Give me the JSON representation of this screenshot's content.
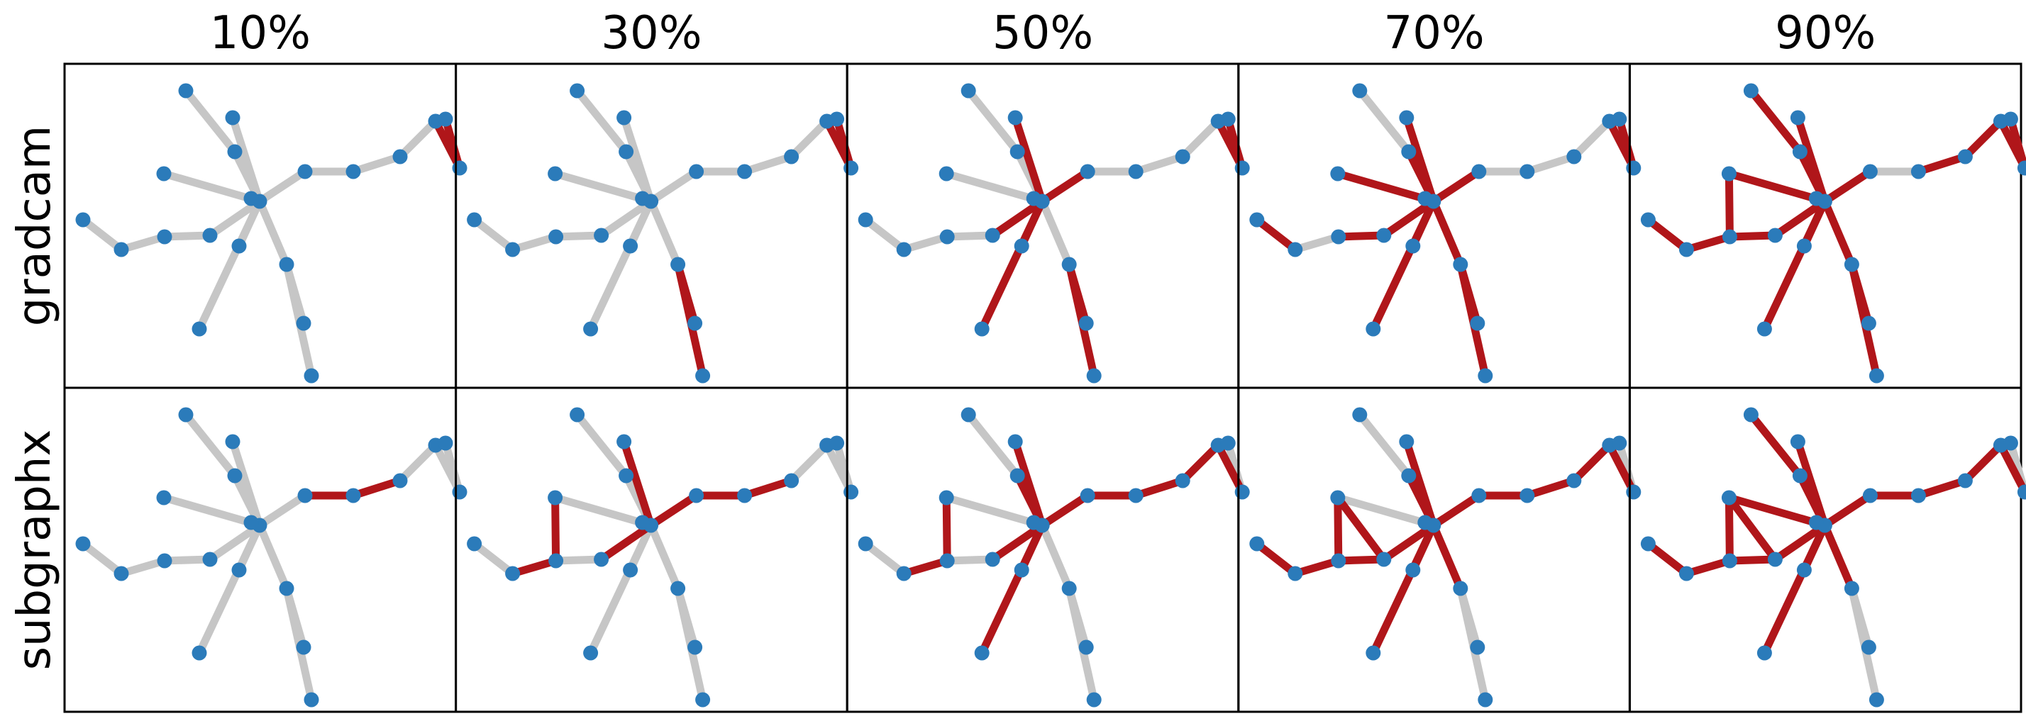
{
  "columns": [
    "10%",
    "30%",
    "50%",
    "70%",
    "90%"
  ],
  "rows": [
    "gradcam",
    "subgraphx"
  ],
  "colors": {
    "node": "#2b7bba",
    "edge_default": "#c6c6c6",
    "edge_highlight": "#b0161a",
    "frame": "#000000",
    "background": "#ffffff"
  },
  "graph": {
    "node_count": 21,
    "edges": [
      [
        0,
        1
      ],
      [
        1,
        2
      ],
      [
        2,
        3
      ],
      [
        3,
        4
      ],
      [
        4,
        5
      ],
      [
        5,
        6
      ],
      [
        5,
        7
      ],
      [
        4,
        8
      ],
      [
        4,
        9
      ],
      [
        4,
        10
      ],
      [
        4,
        11
      ],
      [
        4,
        12
      ],
      [
        4,
        13
      ],
      [
        4,
        14
      ],
      [
        14,
        15
      ],
      [
        15,
        16
      ],
      [
        16,
        17
      ],
      [
        17,
        18
      ],
      [
        18,
        19
      ],
      [
        19,
        17
      ],
      [
        10,
        20
      ]
    ]
  },
  "highlighted_edges": {
    "gradcam": [
      [
        [
          18,
          19
        ],
        [
          19,
          17
        ]
      ],
      [
        [
          18,
          19
        ],
        [
          19,
          17
        ],
        [
          5,
          6
        ],
        [
          5,
          7
        ]
      ],
      [
        [
          18,
          19
        ],
        [
          19,
          17
        ],
        [
          5,
          6
        ],
        [
          5,
          7
        ],
        [
          3,
          4
        ],
        [
          4,
          8
        ],
        [
          4,
          12
        ],
        [
          4,
          14
        ],
        [
          4,
          13
        ]
      ],
      [
        [
          18,
          19
        ],
        [
          19,
          17
        ],
        [
          5,
          6
        ],
        [
          5,
          7
        ],
        [
          3,
          4
        ],
        [
          4,
          8
        ],
        [
          4,
          12
        ],
        [
          4,
          14
        ],
        [
          4,
          13
        ],
        [
          2,
          3
        ],
        [
          4,
          5
        ],
        [
          4,
          9
        ],
        [
          4,
          10
        ],
        [
          4,
          11
        ],
        [
          0,
          1
        ]
      ],
      [
        [
          18,
          19
        ],
        [
          19,
          17
        ],
        [
          5,
          6
        ],
        [
          5,
          7
        ],
        [
          3,
          4
        ],
        [
          4,
          8
        ],
        [
          4,
          12
        ],
        [
          4,
          14
        ],
        [
          4,
          13
        ],
        [
          2,
          3
        ],
        [
          4,
          5
        ],
        [
          4,
          9
        ],
        [
          4,
          10
        ],
        [
          4,
          11
        ],
        [
          0,
          1
        ],
        [
          10,
          20
        ],
        [
          15,
          16
        ],
        [
          16,
          17
        ],
        [
          1,
          2
        ],
        [
          2,
          9
        ]
      ]
    ],
    "subgraphx": [
      [
        [
          14,
          15
        ],
        [
          15,
          16
        ]
      ],
      [
        [
          14,
          15
        ],
        [
          15,
          16
        ],
        [
          4,
          14
        ],
        [
          3,
          4
        ],
        [
          4,
          12
        ],
        [
          1,
          2
        ],
        [
          2,
          9
        ]
      ],
      [
        [
          14,
          15
        ],
        [
          15,
          16
        ],
        [
          4,
          14
        ],
        [
          3,
          4
        ],
        [
          4,
          12
        ],
        [
          1,
          2
        ],
        [
          2,
          9
        ],
        [
          16,
          17
        ],
        [
          17,
          18
        ],
        [
          19,
          17
        ],
        [
          4,
          8
        ],
        [
          4,
          13
        ],
        [
          4,
          10
        ],
        [
          4,
          11
        ]
      ],
      [
        [
          14,
          15
        ],
        [
          15,
          16
        ],
        [
          4,
          14
        ],
        [
          3,
          4
        ],
        [
          4,
          12
        ],
        [
          1,
          2
        ],
        [
          2,
          9
        ],
        [
          16,
          17
        ],
        [
          17,
          18
        ],
        [
          19,
          17
        ],
        [
          4,
          8
        ],
        [
          4,
          13
        ],
        [
          4,
          10
        ],
        [
          4,
          11
        ],
        [
          0,
          1
        ],
        [
          4,
          5
        ],
        [
          3,
          9
        ],
        [
          2,
          3
        ]
      ],
      [
        [
          14,
          15
        ],
        [
          15,
          16
        ],
        [
          4,
          14
        ],
        [
          3,
          4
        ],
        [
          4,
          12
        ],
        [
          1,
          2
        ],
        [
          2,
          9
        ],
        [
          16,
          17
        ],
        [
          17,
          18
        ],
        [
          19,
          17
        ],
        [
          4,
          8
        ],
        [
          4,
          13
        ],
        [
          4,
          10
        ],
        [
          4,
          11
        ],
        [
          0,
          1
        ],
        [
          4,
          5
        ],
        [
          3,
          9
        ],
        [
          2,
          3
        ],
        [
          10,
          20
        ],
        [
          4,
          9
        ]
      ]
    ]
  }
}
